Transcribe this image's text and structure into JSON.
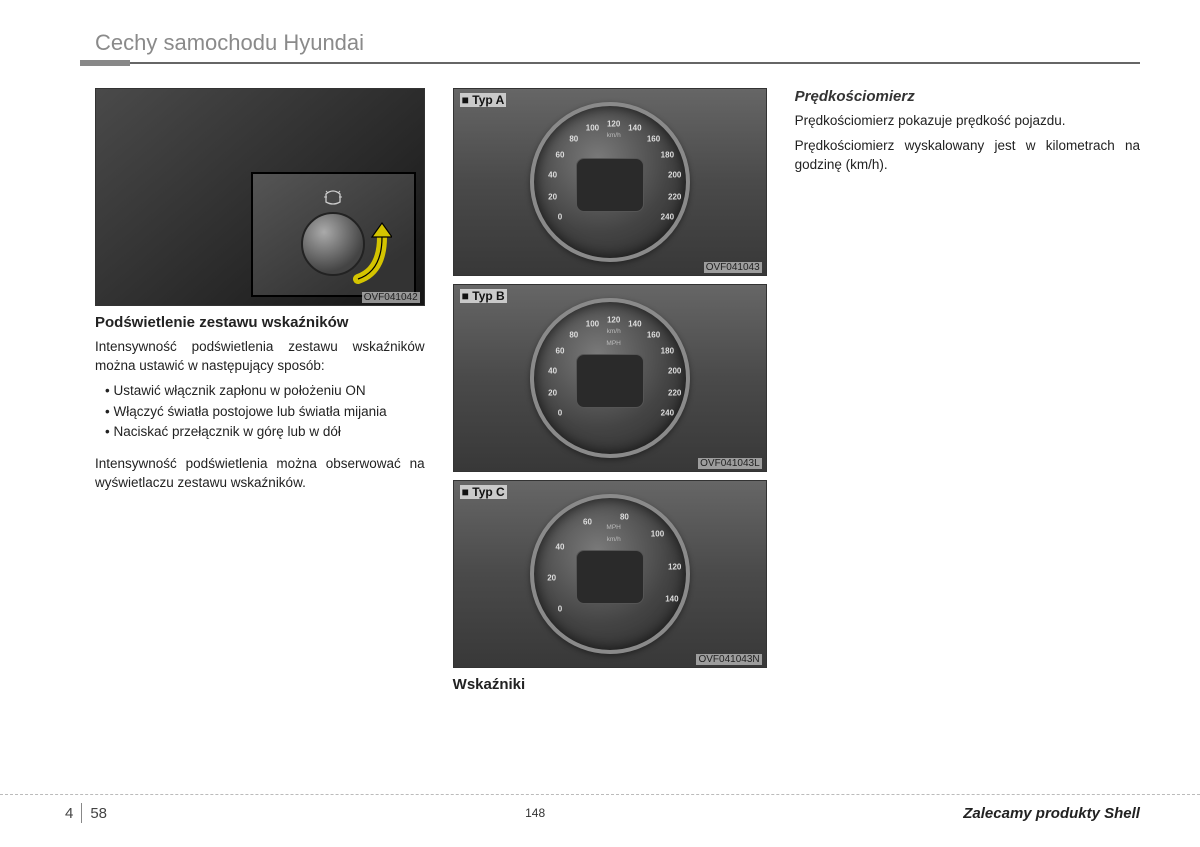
{
  "header": {
    "section_title": "Cechy samochodu Hyundai"
  },
  "col1": {
    "image_ref": "OVF041042",
    "heading": "Podświetlenie zestawu wskaźników",
    "intro": "Intensywność podświetlenia zestawu wskaźników można ustawić w następujący sposób:",
    "bullets": [
      "Ustawić włącznik zapłonu w położeniu ON",
      "Włączyć światła postojowe lub światła mijania",
      "Naciskać przełącznik w górę lub w dół"
    ],
    "outro": "Intensywność podświetlenia można obserwować na wyświetlaczu zestawu wskaźników."
  },
  "col2": {
    "gauges": [
      {
        "label": "■ Typ A",
        "ref": "OVF041043",
        "unit_top": "km/h",
        "ticks": [
          "0",
          "20",
          "40",
          "60",
          "80",
          "100",
          "120",
          "140",
          "160",
          "180",
          "200",
          "220",
          "240"
        ],
        "angles_deg": [
          -120,
          -100,
          -80,
          -60,
          -40,
          -20,
          0,
          20,
          40,
          60,
          80,
          100,
          120
        ]
      },
      {
        "label": "■ Typ B",
        "ref": "OVF041043L",
        "unit_top": "km/h",
        "unit_inner": "MPH",
        "ticks": [
          "0",
          "20",
          "40",
          "60",
          "80",
          "100",
          "120",
          "140",
          "160",
          "180",
          "200",
          "220",
          "240"
        ],
        "angles_deg": [
          -120,
          -100,
          -80,
          -60,
          -40,
          -20,
          0,
          20,
          40,
          60,
          80,
          100,
          120
        ]
      },
      {
        "label": "■ Typ C",
        "ref": "OVF041043N",
        "unit_top": "MPH",
        "unit_inner": "km/h",
        "ticks": [
          "0",
          "20",
          "40",
          "60",
          "80",
          "100",
          "120",
          "140"
        ],
        "angles_deg": [
          -120,
          -90,
          -60,
          -25,
          10,
          45,
          80,
          110
        ]
      }
    ],
    "bottom_heading": "Wskaźniki"
  },
  "col3": {
    "heading": "Prędkościomierz",
    "para1": "Prędkościomierz pokazuje prędkość pojazdu.",
    "para2": "Prędkościomierz wyskalowany jest w kilometrach na godzinę (km/h)."
  },
  "footer": {
    "chapter": "4",
    "page_in_chapter": "58",
    "absolute_page": "148",
    "right": "Zalecamy produkty Shell"
  },
  "colors": {
    "header_text": "#8a8a8a",
    "rule": "#666666",
    "body": "#222222",
    "gauge_bg_light": "#7a7a7a",
    "gauge_bg_dark": "#2a2a2a"
  }
}
